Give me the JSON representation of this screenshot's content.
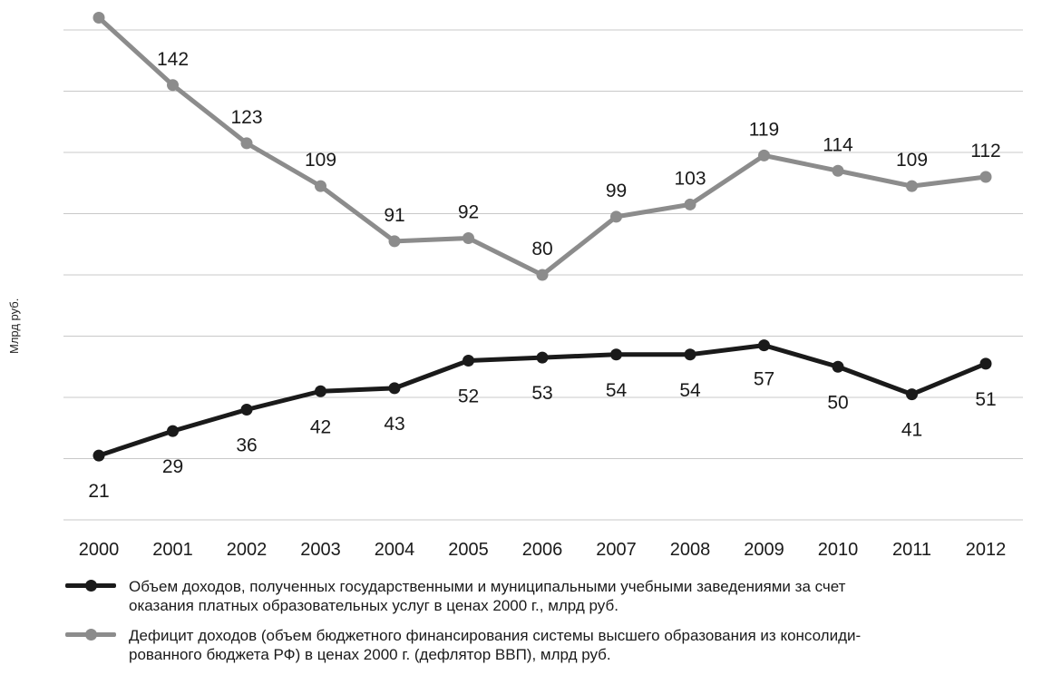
{
  "chart_data": {
    "type": "line",
    "title": "",
    "xlabel": "",
    "ylabel": "Млрд руб.",
    "categories": [
      "2000",
      "2001",
      "2002",
      "2003",
      "2004",
      "2005",
      "2006",
      "2007",
      "2008",
      "2009",
      "2010",
      "2011",
      "2012"
    ],
    "ylim": [
      0,
      160
    ],
    "grid": true,
    "series": [
      {
        "name": "Объем доходов, полученных государственными и муниципальными учебными заведениями за счет оказания платных образовательных услуг в ценах 2000 г., млрд руб.",
        "color": "#1a1a1a",
        "values": [
          21,
          29,
          36,
          42,
          43,
          52,
          53,
          54,
          54,
          57,
          50,
          41,
          51
        ],
        "labels": [
          "21",
          "29",
          "36",
          "42",
          "43",
          "52",
          "53",
          "54",
          "54",
          "57",
          "50",
          "41",
          "51"
        ]
      },
      {
        "name": "Дефицит доходов (объем бюджетного финансирования системы высшего образования из консолидированного бюджета РФ) в ценах 2000 г. (дефлятор ВВП), млрд руб.",
        "color": "#8c8c8c",
        "values": [
          164,
          142,
          123,
          109,
          91,
          92,
          80,
          99,
          103,
          119,
          114,
          109,
          112
        ],
        "labels": [
          "",
          "142",
          "123",
          "109",
          "91",
          "92",
          "80",
          "99",
          "103",
          "119",
          "114",
          "109",
          "112"
        ]
      }
    ],
    "legend_position": "bottom"
  },
  "legend": {
    "income_line1": "Объем доходов, полученных государственными и муниципальными учебными заведениями за счет",
    "income_line2": "оказания платных образовательных услуг в ценах 2000 г., млрд руб.",
    "deficit_line1": "Дефицит доходов (объем бюджетного финансирования системы высшего образования из консолиди-",
    "deficit_line2": "рованного бюджета РФ) в ценах 2000 г. (дефлятор ВВП), млрд руб."
  }
}
